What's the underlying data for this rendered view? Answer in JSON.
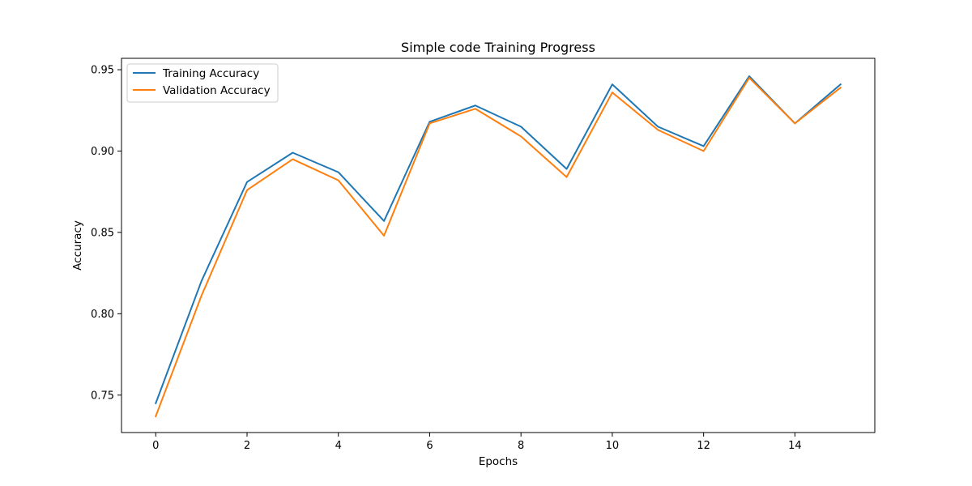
{
  "chart_data": {
    "type": "line",
    "title": "Simple code Training Progress",
    "xlabel": "Epochs",
    "ylabel": "Accuracy",
    "xlim": [
      -0.75,
      15.75
    ],
    "ylim": [
      0.727,
      0.957
    ],
    "xticks": [
      0,
      2,
      4,
      6,
      8,
      10,
      12,
      14
    ],
    "xtick_labels": [
      "0",
      "2",
      "4",
      "6",
      "8",
      "10",
      "12",
      "14"
    ],
    "yticks": [
      0.75,
      0.8,
      0.85,
      0.9,
      0.95
    ],
    "ytick_labels": [
      "0.75",
      "0.80",
      "0.85",
      "0.90",
      "0.95"
    ],
    "grid": false,
    "legend_position": "top-left",
    "x": [
      0,
      1,
      2,
      3,
      4,
      5,
      6,
      7,
      8,
      9,
      10,
      11,
      12,
      13,
      14,
      15
    ],
    "series": [
      {
        "name": "Training Accuracy",
        "color": "#1f77b4",
        "values": [
          0.745,
          0.82,
          0.881,
          0.899,
          0.887,
          0.857,
          0.918,
          0.928,
          0.915,
          0.889,
          0.941,
          0.915,
          0.903,
          0.946,
          0.917,
          0.941
        ]
      },
      {
        "name": "Validation Accuracy",
        "color": "#ff7f0e",
        "values": [
          0.737,
          0.811,
          0.876,
          0.895,
          0.882,
          0.848,
          0.917,
          0.926,
          0.909,
          0.884,
          0.936,
          0.913,
          0.9,
          0.945,
          0.917,
          0.939
        ]
      }
    ]
  }
}
